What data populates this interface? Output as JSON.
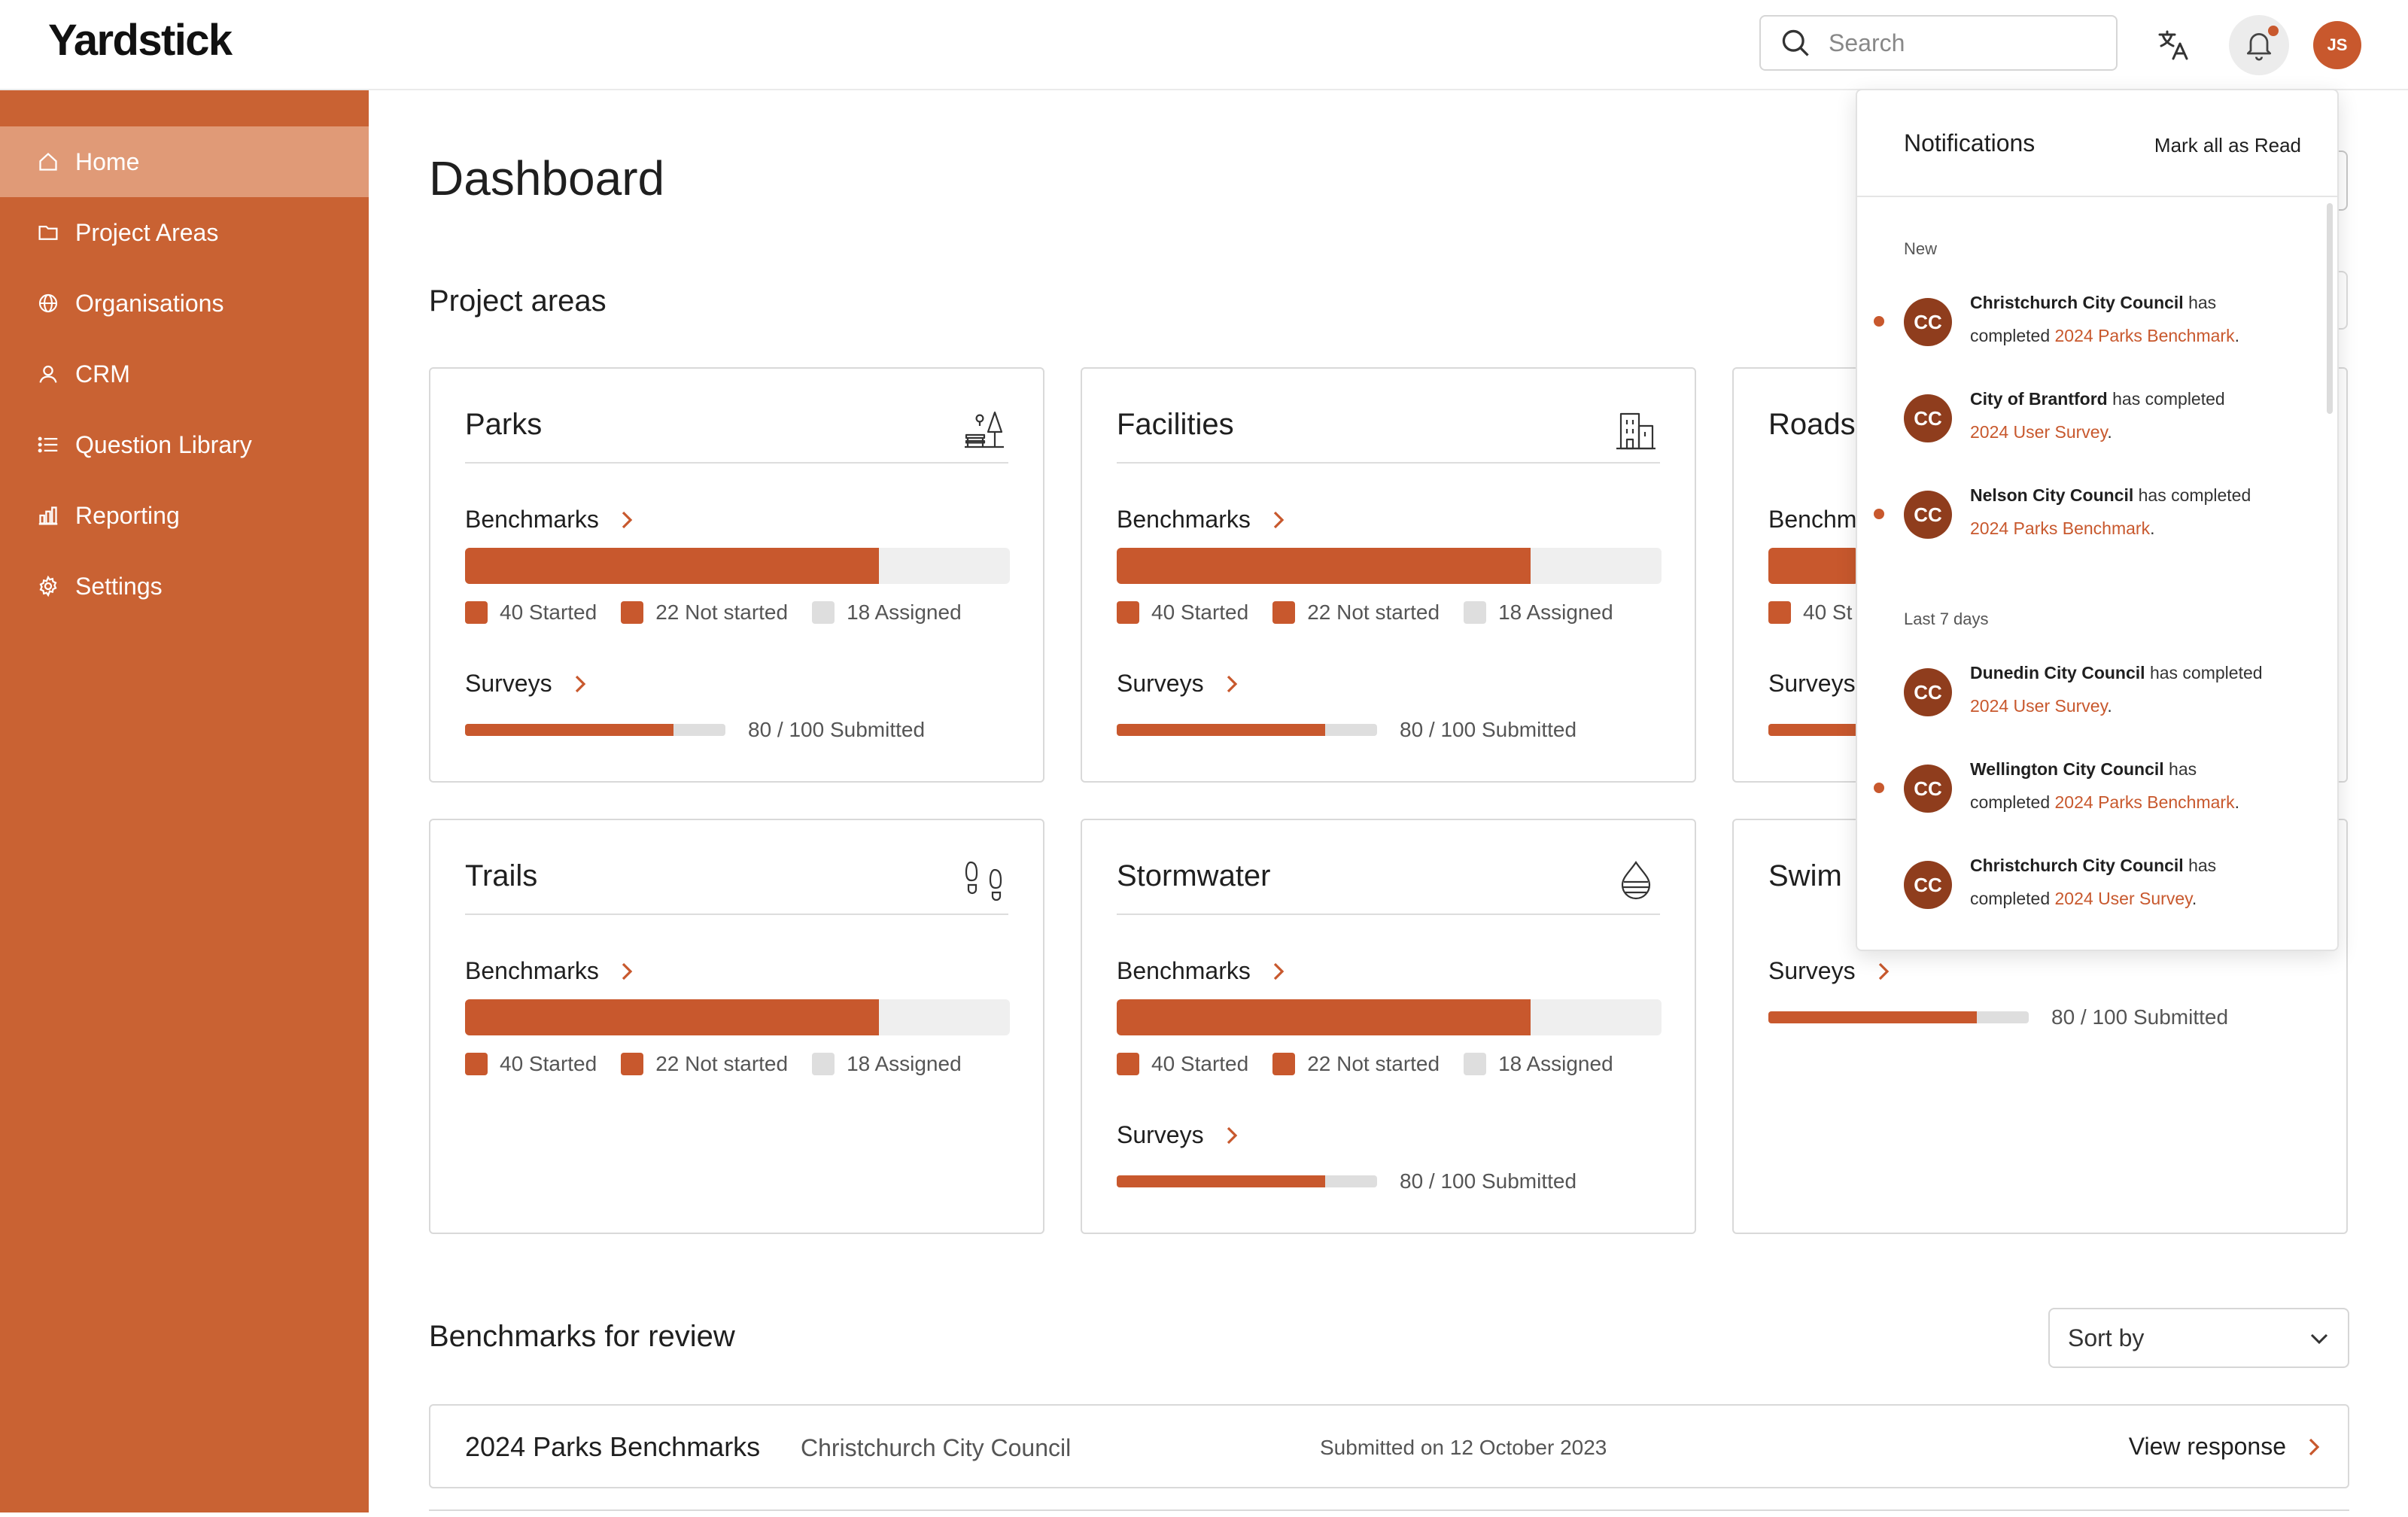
{
  "app": {
    "logo": "Yardstick"
  },
  "header": {
    "search_placeholder": "Search",
    "user_initials": "JS"
  },
  "sidebar": {
    "items": [
      {
        "label": "Home",
        "icon": "home-icon",
        "active": true
      },
      {
        "label": "Project Areas",
        "icon": "folder-icon"
      },
      {
        "label": "Organisations",
        "icon": "globe-icon"
      },
      {
        "label": "CRM",
        "icon": "user-icon"
      },
      {
        "label": "Question Library",
        "icon": "list-icon"
      },
      {
        "label": "Reporting",
        "icon": "bar-chart-icon"
      },
      {
        "label": "Settings",
        "icon": "gear-icon"
      }
    ]
  },
  "main": {
    "title": "Dashboard",
    "project_areas_title": "Project areas",
    "benchmarks_label": "Benchmarks",
    "surveys_label": "Surveys",
    "cards": [
      {
        "title": "Parks",
        "icon": "park-icon",
        "benchmark_progress": 0.76,
        "legend": [
          "40 Started",
          "22 Not started",
          "18 Assigned"
        ],
        "survey_progress": 0.8,
        "survey_text": "80 / 100 Submitted"
      },
      {
        "title": "Facilities",
        "icon": "building-icon",
        "benchmark_progress": 0.76,
        "legend": [
          "40 Started",
          "22 Not started",
          "18 Assigned"
        ],
        "survey_progress": 0.8,
        "survey_text": "80 / 100 Submitted"
      },
      {
        "title": "Roads",
        "icon": "road-icon",
        "benchmark_label": "Benchm",
        "legend_first": "40 St",
        "survey_label": "Surveys"
      },
      {
        "title": "Trails",
        "icon": "footprints-icon",
        "benchmark_progress": 0.76,
        "legend": [
          "40 Started",
          "22 Not started",
          "18 Assigned"
        ]
      },
      {
        "title": "Stormwater",
        "icon": "water-drop-icon",
        "benchmark_progress": 0.76,
        "legend": [
          "40 Started",
          "22 Not started",
          "18 Assigned"
        ],
        "survey_progress": 0.8,
        "survey_text": "80 / 100 Submitted"
      },
      {
        "title": "Swim",
        "icon": "swim-icon",
        "survey_progress": 0.8,
        "survey_text": "80 / 100 Submitted"
      }
    ],
    "review_title": "Benchmarks for review",
    "sort_label": "Sort by",
    "review_rows": [
      {
        "name": "2024 Parks Benchmarks",
        "org": "Christchurch City Council",
        "date": "Submitted on 12 October 2023",
        "link": "View response"
      }
    ]
  },
  "notifications": {
    "title": "Notifications",
    "mark_all": "Mark all as Read",
    "group_new": "New",
    "group_last7": "Last 7 days",
    "items": [
      {
        "initials": "CC",
        "org": "Christchurch City Council",
        "has": " has",
        "line2_prefix": "completed ",
        "line1_rest": "",
        "link": "2024 Parks Benchmark",
        "period": ".",
        "unread": true
      },
      {
        "initials": "CC",
        "org": "City of Brantford",
        "has": " has completed",
        "line2_prefix": "",
        "link": "2024 User Survey",
        "period": ".",
        "unread": false
      },
      {
        "initials": "CC",
        "org": "Nelson City Council",
        "has": " has completed",
        "line2_prefix": "",
        "link": "2024 Parks Benchmark",
        "period": ".",
        "unread": true
      },
      {
        "initials": "CC",
        "org": "Dunedin City Council",
        "has": " has completed",
        "line2_prefix": "",
        "link": "2024 User Survey",
        "period": ".",
        "unread": false
      },
      {
        "initials": "CC",
        "org": "Wellington City Council",
        "has": " has",
        "line2_prefix": "completed ",
        "link": "2024 Parks Benchmark",
        "period": ".",
        "unread": true
      },
      {
        "initials": "CC",
        "org": "Christchurch City Council",
        "has": " has",
        "line2_prefix": "completed ",
        "link": "2024 User Survey",
        "period": ".",
        "unread": false
      }
    ]
  },
  "colors": {
    "brand": "#c96233",
    "accent": "#c8582d",
    "active_nav": "#e09a77",
    "avatar": "#8f3d1d"
  }
}
